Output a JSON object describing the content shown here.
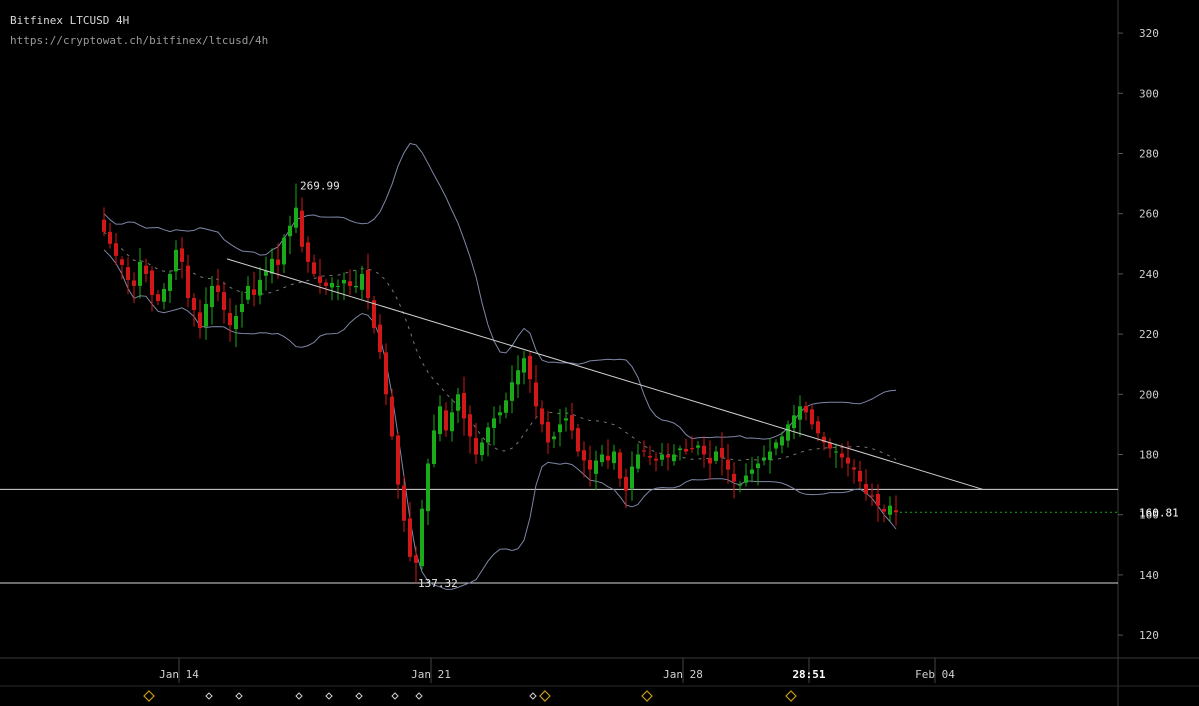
{
  "header": {
    "title": "Bitfinex LTCUSD 4H",
    "url": "https://cryptowat.ch/bitfinex/ltcusd/4h"
  },
  "colors": {
    "background": "#000000",
    "up": "#1aaa1a",
    "down": "#d01818",
    "band": "#7d86a6",
    "trendline": "#d0d0d0",
    "hline": "#d8d8d8",
    "marker": "#c99a1e",
    "axis_text": "#cfcfcf"
  },
  "chart_data": {
    "type": "candlestick",
    "title": "Bitfinex LTCUSD 4H",
    "interval": "4h",
    "y_axis": {
      "position": "right",
      "range": [
        112,
        328
      ],
      "ticks": [
        120,
        140,
        160,
        180,
        200,
        220,
        240,
        260,
        280,
        300,
        320
      ]
    },
    "x_axis": {
      "range": [
        "Jan 11 20:00",
        "Feb 08 08:00"
      ],
      "ticks": [
        {
          "label": "Jan 14",
          "t": "Jan 14 00:00"
        },
        {
          "label": "Jan 21",
          "t": "Jan 21 00:00"
        },
        {
          "label": "Jan 28",
          "t": "Jan 28 00:00"
        },
        {
          "label": "28:51",
          "t": "Jan 31 12:00",
          "emphasis": true
        },
        {
          "label": "Feb 04",
          "t": "Feb 04 00:00"
        }
      ]
    },
    "candles_close": [
      254,
      250,
      246,
      243,
      238,
      236,
      244,
      240,
      233,
      231,
      235,
      240,
      248,
      244,
      232,
      228,
      222,
      230,
      236,
      234,
      228,
      223,
      226,
      230,
      236,
      233,
      238,
      241,
      245,
      243,
      252,
      256,
      262,
      249,
      244,
      240,
      237,
      236,
      237,
      236,
      238,
      236,
      236,
      240,
      232,
      222,
      214,
      200,
      186,
      170,
      158,
      146,
      144,
      162,
      177,
      188,
      196,
      188,
      194,
      200,
      192,
      186,
      180,
      184,
      189,
      192,
      194,
      198,
      204,
      208,
      212,
      205,
      196,
      190,
      184,
      186,
      190,
      192,
      188,
      181,
      178,
      175,
      178,
      180,
      178,
      181,
      172,
      168,
      176,
      180,
      181,
      179,
      178,
      180,
      179,
      180,
      182,
      181,
      182,
      183,
      180,
      177,
      181,
      179,
      175,
      171,
      170,
      173,
      175,
      177,
      179,
      181,
      184,
      186,
      190,
      193,
      196,
      194,
      190,
      187,
      184,
      182,
      181,
      179,
      177,
      175,
      171,
      167,
      166,
      163,
      161,
      163,
      160.81
    ],
    "price_labels": [
      {
        "text": "269.99",
        "value": 269.99,
        "type": "high"
      },
      {
        "text": "137.32",
        "value": 137.32,
        "type": "low"
      },
      {
        "text": "160.81",
        "value": 160.81,
        "type": "last"
      }
    ],
    "horizontal_lines": [
      168.4,
      137.32
    ],
    "trendline": {
      "from": {
        "t": "Jan 15 08:00",
        "price": 245
      },
      "to": {
        "t": "Feb 05 08:00",
        "price": 168.4
      }
    },
    "event_markers": {
      "large": [
        "Jan 13 04:00",
        "Jan 24 04:00",
        "Jan 27 00:00",
        "Jan 31 00:00"
      ],
      "small": [
        "Jan 14 20:00",
        "Jan 15 16:00",
        "Jan 17 08:00",
        "Jan 18 04:00",
        "Jan 19 00:00",
        "Jan 20 00:00",
        "Jan 20 16:00",
        "Jan 23 20:00"
      ]
    },
    "grid": false,
    "legend": "none"
  }
}
